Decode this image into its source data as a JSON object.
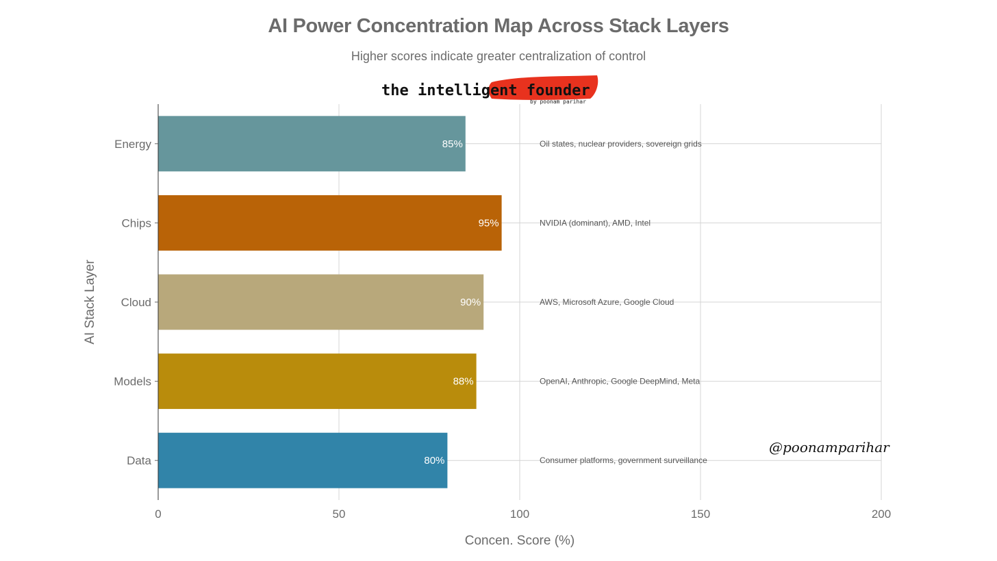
{
  "title": "AI Power Concentration Map Across Stack Layers",
  "subtitle": "Higher scores indicate greater centralization of control",
  "logo": {
    "text": "the intelligent founder",
    "byline": "by poonam parihar",
    "brush_color": "#e8321e"
  },
  "handle": "@poonamparihar",
  "chart_data": {
    "type": "bar",
    "orientation": "horizontal",
    "categories": [
      "Energy",
      "Chips",
      "Cloud",
      "Models",
      "Data"
    ],
    "values": [
      85,
      95,
      90,
      88,
      80
    ],
    "value_labels": [
      "85%",
      "95%",
      "90%",
      "88%",
      "80%"
    ],
    "annotations": [
      "Oil states, nuclear providers, sovereign grids",
      "NVIDIA (dominant), AMD, Intel",
      "AWS, Microsoft Azure, Google Cloud",
      "OpenAI, Anthropic, Google DeepMind, Meta",
      "Consumer platforms, government surveillance"
    ],
    "colors": [
      "#66969c",
      "#b96307",
      "#b8a87b",
      "#b98c0c",
      "#3184a9"
    ],
    "xlabel": "Concen. Score (%)",
    "ylabel": "AI Stack Layer",
    "xlim": [
      0,
      200
    ],
    "xticks": [
      0,
      50,
      100,
      150,
      200
    ],
    "grid": true,
    "legend": "none"
  }
}
